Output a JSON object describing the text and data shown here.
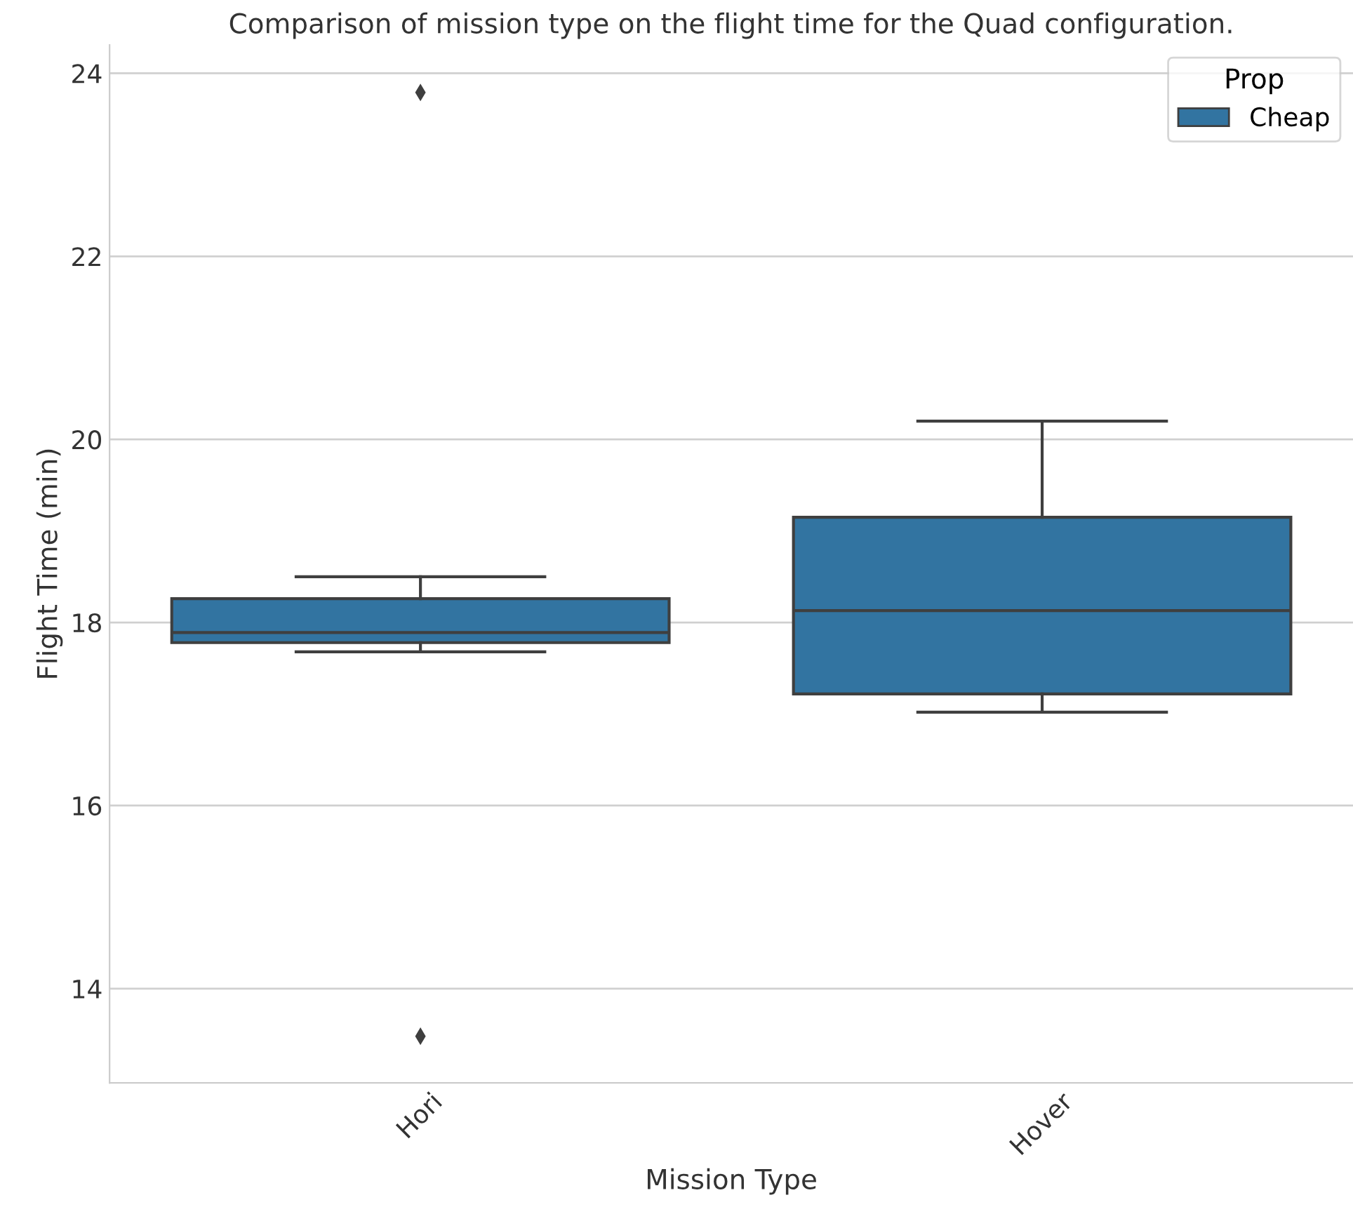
{
  "chart_data": {
    "type": "box",
    "title": "Comparison of mission type on the flight time for the Quad configuration.",
    "xlabel": "Mission Type",
    "ylabel": "Flight Time (min)",
    "legend_title": "Prop",
    "categories": [
      "Hori",
      "Hover"
    ],
    "series": [
      {
        "name": "Cheap",
        "color": "#3274a1",
        "boxes": [
          {
            "low": 17.68,
            "q1": 17.78,
            "median": 17.89,
            "q3": 18.26,
            "high": 18.5,
            "outliers": [
              23.79,
              13.48
            ]
          },
          {
            "low": 17.02,
            "q1": 17.22,
            "median": 18.13,
            "q3": 19.15,
            "high": 20.2
          }
        ]
      }
    ],
    "ylim": [
      12.97,
      24.31
    ],
    "yticks": [
      14,
      16,
      18,
      20,
      22,
      24
    ],
    "grid": "y",
    "legend": "top right",
    "marker": "diamond"
  }
}
